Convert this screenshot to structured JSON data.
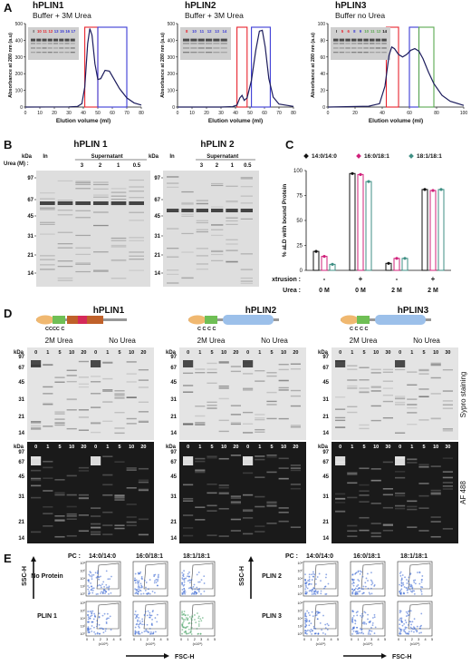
{
  "panel_labels": [
    "A",
    "B",
    "C",
    "D",
    "E"
  ],
  "panel_a": {
    "charts": [
      {
        "title": "hPLIN1",
        "subtitle": "Buffer + 3M Urea",
        "ylabel": "Absorbance at 280 nm (a.u)",
        "xlabel": "Elution volume (ml)",
        "yticks": [
          "0",
          "100",
          "200",
          "300",
          "400",
          "500"
        ],
        "xticks": [
          "0",
          "10",
          "20",
          "30",
          "40",
          "50",
          "60",
          "70",
          "80"
        ],
        "gel_lanes": [
          "I",
          "10",
          "11",
          "12",
          "13",
          "15",
          "16",
          "17"
        ],
        "windows": [
          {
            "color": "#e8242e",
            "x0": 41,
            "x1": 50
          },
          {
            "color": "#3b3bd6",
            "x0": 50,
            "x1": 70
          }
        ]
      },
      {
        "title": "hPLIN2",
        "subtitle": "Buffer + 3M Urea",
        "ylabel": "Absorbance at 280 nm (a.u)",
        "xlabel": "Elution volume (ml)",
        "yticks": [
          "0",
          "100",
          "200",
          "300",
          "400",
          "500"
        ],
        "xticks": [
          "0",
          "10",
          "20",
          "30",
          "40",
          "50",
          "60",
          "70",
          "80"
        ],
        "gel_lanes": [
          "8",
          "10",
          "11",
          "12",
          "13",
          "14"
        ],
        "windows": [
          {
            "color": "#e8242e",
            "x0": 41,
            "x1": 48
          },
          {
            "color": "#3b3bd6",
            "x0": 51,
            "x1": 64
          }
        ]
      },
      {
        "title": "hPLIN3",
        "subtitle": "Buffer no Urea",
        "ylabel": "Absorbance at 280 nm (a.u)",
        "xlabel": "Elution volume (ml)",
        "yticks": [
          "0",
          "20",
          "40",
          "60",
          "80",
          "100"
        ],
        "xticks": [
          "0",
          "20",
          "40",
          "60",
          "80",
          "100"
        ],
        "gel_lanes": [
          "I",
          "5",
          "6",
          "8",
          "9",
          "10",
          "11",
          "12",
          "14"
        ],
        "windows": [
          {
            "color": "#e8242e",
            "x0": 43,
            "x1": 52
          },
          {
            "color": "#3b3bd6",
            "x0": 60,
            "x1": 67
          },
          {
            "color": "#5aa850",
            "x0": 67,
            "x1": 78
          }
        ]
      }
    ]
  },
  "panel_b": {
    "gel1_title": "hPLIN 1",
    "gel2_title": "hPLIN 2",
    "urea_label": "Urea (M) :",
    "kda_label": "kDa",
    "input_label": "In",
    "supernatant_label": "Supernatant",
    "urea_values": [
      "3",
      "2",
      "1",
      "0.5"
    ],
    "mw_markers": [
      "97",
      "67",
      "45",
      "31",
      "21",
      "14"
    ]
  },
  "panel_c": {
    "chart_data": {
      "type": "bar",
      "ylabel": "% aLD with bound Protein",
      "ylim": [
        0,
        100
      ],
      "yticks": [
        "0",
        "25",
        "50",
        "75",
        "100"
      ],
      "legend": "top",
      "extrusion_label": "Extrusion :",
      "urea_label": "Urea :",
      "groups": [
        {
          "extrusion": "-",
          "urea": "0 M"
        },
        {
          "extrusion": "+",
          "urea": "0 M"
        },
        {
          "extrusion": "-",
          "urea": "2 M"
        },
        {
          "extrusion": "+",
          "urea": "2 M"
        }
      ],
      "series": [
        {
          "name": "14:0/14:0",
          "color": "#111111",
          "values": [
            19,
            97,
            7,
            81
          ]
        },
        {
          "name": "16:0/18:1",
          "color": "#d0207a",
          "values": [
            14,
            96,
            12,
            80
          ]
        },
        {
          "name": "18:1/18:1",
          "color": "#3f8f84",
          "values": [
            6,
            89,
            12,
            81
          ]
        }
      ]
    }
  },
  "panel_d": {
    "gels": [
      {
        "title": "hPLIN1",
        "urea_headers": [
          "2M Urea",
          "No Urea"
        ],
        "lanes": [
          "0",
          "1",
          "5",
          "10",
          "20",
          "0",
          "1",
          "5",
          "10",
          "20"
        ]
      },
      {
        "title": "hPLIN2",
        "urea_headers": [
          "2M Urea",
          "No Urea"
        ],
        "lanes": [
          "0",
          "1",
          "5",
          "10",
          "20",
          "0",
          "1",
          "5",
          "10",
          "20"
        ]
      },
      {
        "title": "hPLIN3",
        "urea_headers": [
          "2M Urea",
          "No Urea"
        ],
        "lanes": [
          "0",
          "1",
          "5",
          "10",
          "30",
          "0",
          "1",
          "5",
          "10",
          "30"
        ]
      }
    ],
    "kda_label": "kDa",
    "mw_markers": [
      "97",
      "67",
      "45",
      "31",
      "21",
      "14"
    ],
    "stain_top": "Sypro staining",
    "stain_bottom": "AF 488"
  },
  "panel_e": {
    "pc_label": "PC :",
    "lipids": [
      "14:0/14:0",
      "16:0/18:1",
      "18:1/18:1"
    ],
    "left_rows": [
      "No Protein",
      "PLIN 1"
    ],
    "right_rows": [
      "PLIN 2",
      "PLIN 3"
    ],
    "y_axis": "SSC-H",
    "x_axis": "FSC-H",
    "ytick_labels": [
      "10⁸",
      "10⁶",
      "10⁴",
      "10²",
      "10⁰"
    ],
    "xtick_labels": [
      "0",
      "1",
      "2",
      "3",
      "4",
      "5"
    ],
    "x_unit": "(x10⁸)"
  }
}
